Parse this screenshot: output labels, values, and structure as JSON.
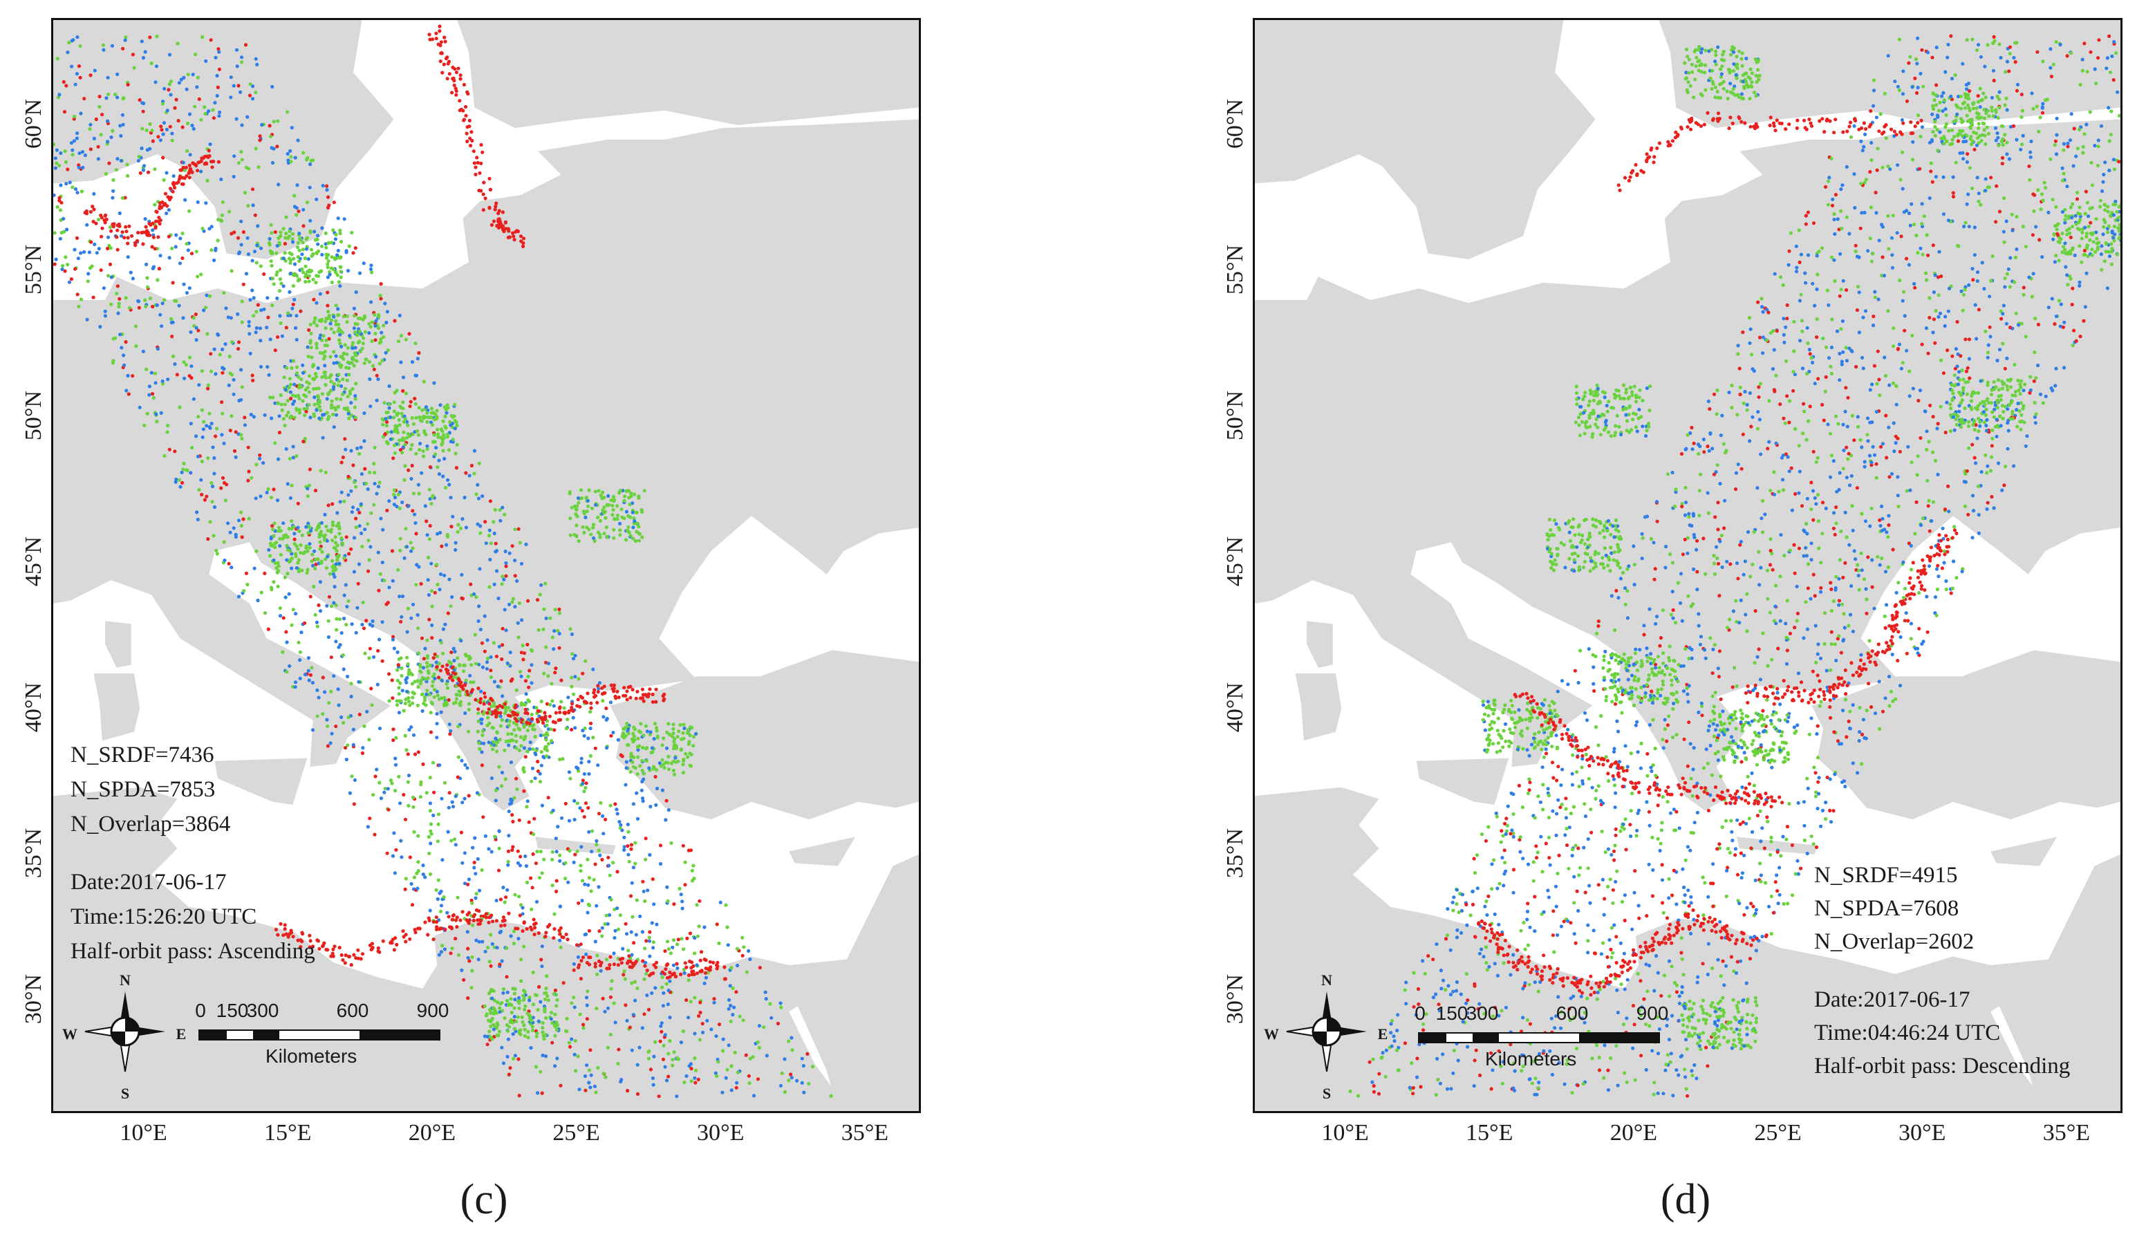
{
  "panels": [
    {
      "id": "c",
      "label": "(c)",
      "stats": [
        "N_SRDF=7436",
        "N_SPDA=7853",
        "N_Overlap=3864"
      ],
      "meta": [
        "Date:2017-06-17",
        "Time:15:26:20 UTC",
        "Half-orbit pass: Ascending"
      ],
      "x_ticks": [
        "10°E",
        "15°E",
        "20°E",
        "25°E",
        "30°E",
        "35°E"
      ],
      "y_ticks": [
        "60°N",
        "55°N",
        "50°N",
        "45°N",
        "40°N",
        "35°N",
        "30°N"
      ],
      "scale_bar": {
        "ticks": [
          "0",
          "150",
          "300",
          "600",
          "900"
        ],
        "unit": "Kilometers"
      },
      "compass": {
        "n": "N",
        "s": "S",
        "e": "E",
        "w": "W"
      },
      "swath_direction": "ascending"
    },
    {
      "id": "d",
      "label": "(d)",
      "stats": [
        "N_SRDF=4915",
        "N_SPDA=7608",
        "N_Overlap=2602"
      ],
      "meta": [
        "Date:2017-06-17",
        "Time:04:46:24 UTC",
        "Half-orbit pass: Descending"
      ],
      "x_ticks": [
        "10°E",
        "15°E",
        "20°E",
        "25°E",
        "30°E",
        "35°E"
      ],
      "y_ticks": [
        "60°N",
        "55°N",
        "50°N",
        "45°N",
        "40°N",
        "35°N",
        "30°N"
      ],
      "scale_bar": {
        "ticks": [
          "0",
          "150",
          "300",
          "600",
          "900"
        ],
        "unit": "Kilometers"
      },
      "compass": {
        "n": "N",
        "s": "S",
        "e": "E",
        "w": "W"
      },
      "swath_direction": "descending"
    }
  ],
  "colors": {
    "land": "#d9d9d9",
    "sea": "#ffffff",
    "red": "#e8211e",
    "green": "#69d23c",
    "blue": "#2f7ee8"
  }
}
